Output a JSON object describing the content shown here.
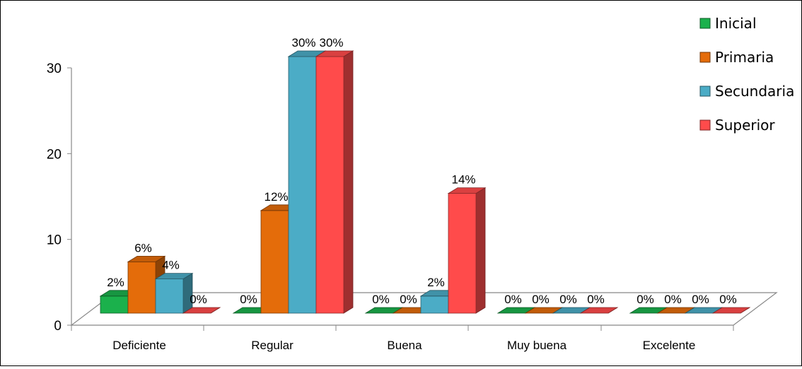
{
  "chart_data": {
    "type": "bar",
    "categories": [
      "Deficiente",
      "Regular",
      "Buena",
      "Muy buena",
      "Excelente"
    ],
    "series": [
      {
        "name": "Inicial",
        "color": "#1BB14C",
        "values": [
          2,
          0,
          0,
          0,
          0
        ],
        "labels": [
          "2%",
          "0%",
          "0%",
          "0%",
          "0%"
        ]
      },
      {
        "name": "Primaria",
        "color": "#E46C0A",
        "values": [
          6,
          12,
          0,
          0,
          0
        ],
        "labels": [
          "6%",
          "12%",
          "0%",
          "0%",
          "0%"
        ]
      },
      {
        "name": "Secundaria",
        "color": "#4BACC6",
        "values": [
          4,
          30,
          2,
          0,
          0
        ],
        "labels": [
          "4%",
          "30%",
          "2%",
          "0%",
          "0%"
        ]
      },
      {
        "name": "Superior",
        "color": "#FF4B4B",
        "values": [
          0,
          30,
          14,
          0,
          0
        ],
        "labels": [
          "0%",
          "30%",
          "14%",
          "0%",
          "0%"
        ]
      }
    ],
    "y_ticks": [
      "0",
      "10",
      "20",
      "30"
    ],
    "ylim": [
      0,
      30
    ],
    "legend": "top-right",
    "grid": false,
    "style": "3d-clustered-column"
  }
}
